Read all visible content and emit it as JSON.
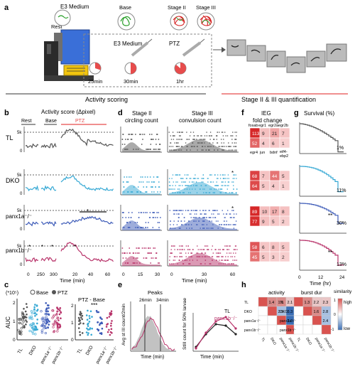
{
  "colors": {
    "tl": "#555555",
    "dko": "#35a8d4",
    "panx1a": "#3d5bb8",
    "panx1b": "#b8336a",
    "protocol_red": "#e74c4c",
    "heat_high": "#d62728",
    "heat_low": "#f4d0d0",
    "sim_high": "#d9534f",
    "sim_low": "#3b6fb6"
  },
  "panel_letters": {
    "a": "a",
    "b": "b",
    "c": "c",
    "d": "d",
    "e": "e",
    "f": "f",
    "g": "g",
    "h": "h"
  },
  "panel_a": {
    "medium_top": "E3 Medium",
    "rest": "Rest",
    "base": "Base",
    "stage2": "Stage II",
    "stage3": "Stage III",
    "medium_inner": "E3 Medium",
    "ptz": "PTZ",
    "t25": "25min",
    "t30": "30min",
    "t1hr": "1hr",
    "activity_scoring": "Activity scoring",
    "quantification": "Stage II & III quantification"
  },
  "panel_b": {
    "title": "Activity score (Δpixel)",
    "seg_rest": "Rest",
    "seg_base": "Base",
    "seg_ptz": "PTZ",
    "ytick_top": "5k",
    "ytick_zero": "0",
    "xticks": [
      "0",
      "250",
      "300",
      "20",
      "40",
      "60"
    ],
    "xlabel": "Time (min)",
    "star": "*"
  },
  "panel_c": {
    "scale": "(*10⁵)",
    "legend_base": "Base",
    "legend_ptz": "PTZ",
    "subtitle": "PTZ - Base",
    "ylabel": "AUC",
    "yticks_left": [
      "0",
      "1",
      "2"
    ],
    "yticks_right": [
      "0",
      "1",
      "2"
    ],
    "stars": "***",
    "xcats": [
      "TL",
      "DKO",
      "panx1a⁻/⁻",
      "panx1b⁻/⁻"
    ]
  },
  "panel_d": {
    "title_left": "Stage II\ncircling count",
    "title_left_l1": "Stage II",
    "title_left_l2": "circling count",
    "title_right_l1": "Stage III",
    "title_right_l2": "convulsion count",
    "xticks_left": [
      "0",
      "15",
      "30"
    ],
    "xticks_right": [
      "0",
      "30",
      "60"
    ],
    "xlabel": "Time (min)",
    "star": "*"
  },
  "panel_e": {
    "title": "Peaks",
    "peak1": "26min",
    "peak2": "34min",
    "ylabel_left": "Avg st III count/2min",
    "ylabel_right": "StIII count for 50% larvae",
    "xlabel": "Time (min)",
    "legend_tl": "TL",
    "legend_panx1b": "panx1b⁻/⁻"
  },
  "panel_f": {
    "title_l1": "IEG",
    "title_l2": "fold change",
    "top_labels": [
      "fosab",
      "egr1",
      "egr2a",
      "egr2b"
    ],
    "bottom_labels": [
      "egr4",
      "jun",
      "bdnf",
      "eif4-\nebp2"
    ],
    "heatmaps": [
      {
        "top": [
          "113",
          "9",
          "21",
          "7"
        ],
        "bottom": [
          "52",
          "4",
          "6",
          "1"
        ]
      },
      {
        "top": [
          "68",
          "7",
          "44",
          "5"
        ],
        "bottom": [
          "64",
          "5",
          "4",
          "1"
        ]
      },
      {
        "top": [
          "89",
          "10",
          "17",
          "8"
        ],
        "bottom": [
          "77",
          "9",
          "5",
          "2"
        ]
      },
      {
        "top": [
          "58",
          "6",
          "8",
          "5"
        ],
        "bottom": [
          "45",
          "5",
          "3",
          "2"
        ]
      }
    ]
  },
  "panel_g": {
    "title": "Survival (%)",
    "pcts": [
      "1%",
      "11%",
      "30%",
      "13%"
    ],
    "stars": "**",
    "xticks": [
      "0",
      "12",
      "24"
    ],
    "xlabel": "Time (hr)"
  },
  "panel_h": {
    "title_left": "activity",
    "title_mid": "burst dur",
    "title_right": "similarity",
    "legend_high": "high",
    "legend_low": "low",
    "legend_ticks": [
      "1",
      "0",
      "-1"
    ],
    "labels": [
      "TL",
      "DKO",
      "panx1a⁻/⁻",
      "panx1b⁻/⁻"
    ],
    "left_cells": [
      "1.4",
      "1.0",
      "2.1",
      "",
      "2.5",
      "3.3",
      "",
      "",
      "3.3",
      "",
      "",
      ""
    ],
    "right_cells": [
      "1.3",
      "2.2",
      "2.3",
      "",
      "1.6",
      "2.8",
      "",
      "",
      "2.4",
      "",
      "",
      ""
    ]
  }
}
